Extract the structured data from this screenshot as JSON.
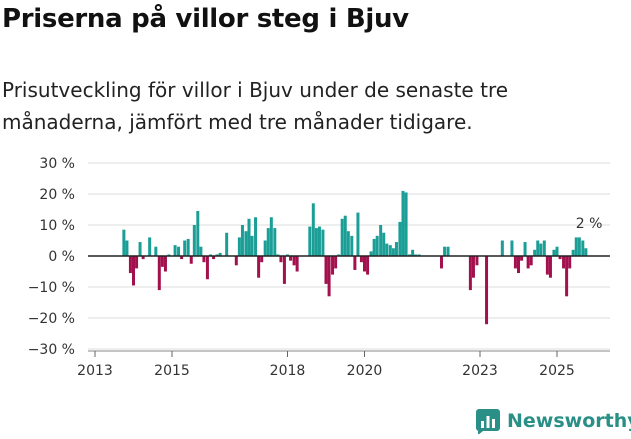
{
  "chart_data": {
    "type": "bar",
    "title": "Priserna på villor steg i Bjuv",
    "subtitle": "Prisutveckling för villor i Bjuv under de senaste tre månaderna, jämfört med tre månader tidigare.",
    "ylabel": "",
    "xlabel": "",
    "ylim": [
      -30,
      30
    ],
    "xlim": [
      2012.9,
      2026.6
    ],
    "y_ticks": [
      {
        "value": 30,
        "label": "30 %"
      },
      {
        "value": 20,
        "label": "20 %"
      },
      {
        "value": 10,
        "label": "10 %"
      },
      {
        "value": 0,
        "label": "0 %"
      },
      {
        "value": -10,
        "label": "−10 %"
      },
      {
        "value": -20,
        "label": "−20 %"
      },
      {
        "value": -30,
        "label": "−30 %"
      }
    ],
    "x_ticks": [
      {
        "value": 2013,
        "label": "2013"
      },
      {
        "value": 2015,
        "label": "2015"
      },
      {
        "value": 2018,
        "label": "2018"
      },
      {
        "value": 2020,
        "label": "2020"
      },
      {
        "value": 2023,
        "label": "2023"
      },
      {
        "value": 2025,
        "label": "2025"
      }
    ],
    "annotation": {
      "text": "2 %",
      "x": 2025.6,
      "y": 2
    },
    "colors": {
      "positive": "#1a9e96",
      "negative": "#a3104e",
      "zero_line": "#222222",
      "grid": "#dddddd"
    },
    "series": [
      {
        "name": "Prisutveckling",
        "x": [
          2013.75,
          2013.83,
          2013.92,
          2014.0,
          2014.08,
          2014.17,
          2014.25,
          2014.42,
          2014.58,
          2014.67,
          2014.75,
          2014.83,
          2014.92,
          2015.08,
          2015.17,
          2015.25,
          2015.33,
          2015.42,
          2015.5,
          2015.58,
          2015.67,
          2015.75,
          2015.83,
          2015.92,
          2016.0,
          2016.08,
          2016.17,
          2016.25,
          2016.42,
          2016.67,
          2016.75,
          2016.83,
          2016.92,
          2017.0,
          2017.08,
          2017.17,
          2017.25,
          2017.33,
          2017.42,
          2017.5,
          2017.58,
          2017.67,
          2017.75,
          2017.83,
          2017.92,
          2018.0,
          2018.08,
          2018.17,
          2018.25,
          2018.58,
          2018.67,
          2018.75,
          2018.83,
          2018.92,
          2019.0,
          2019.08,
          2019.17,
          2019.25,
          2019.33,
          2019.42,
          2019.5,
          2019.58,
          2019.67,
          2019.75,
          2019.83,
          2019.92,
          2020.0,
          2020.08,
          2020.17,
          2020.25,
          2020.33,
          2020.42,
          2020.5,
          2020.58,
          2020.67,
          2020.75,
          2020.83,
          2020.92,
          2021.0,
          2021.08,
          2021.17,
          2021.25,
          2021.33,
          2021.42,
          2022.0,
          2022.08,
          2022.17,
          2022.75,
          2022.83,
          2022.92,
          2023.17,
          2023.58,
          2023.83,
          2023.92,
          2024.0,
          2024.08,
          2024.17,
          2024.25,
          2024.33,
          2024.42,
          2024.5,
          2024.58,
          2024.67,
          2024.75,
          2024.83,
          2024.92,
          2025.0,
          2025.08,
          2025.17,
          2025.25,
          2025.33,
          2025.42,
          2025.5,
          2025.58,
          2025.67,
          2025.75
        ],
        "values": [
          8.5,
          5,
          -5.5,
          -9.5,
          -4,
          4.5,
          -1,
          6,
          3,
          -11,
          -3.5,
          -5,
          0.5,
          3.5,
          3,
          -1,
          5,
          5.5,
          -2.5,
          10,
          14.5,
          3,
          -2,
          -7.5,
          0.5,
          -1,
          0.5,
          1,
          7.5,
          -3,
          6,
          10,
          8,
          12,
          6.5,
          12.5,
          -7,
          -2,
          5,
          9,
          12.5,
          9,
          0.5,
          -2,
          -9,
          0.5,
          -1.5,
          -3,
          -5,
          9.5,
          17,
          9,
          9.5,
          8.5,
          -9,
          -13,
          -6,
          -4,
          0.5,
          12,
          13,
          8,
          6.5,
          -4.5,
          14,
          -2,
          -5,
          -6,
          1.5,
          5.5,
          6.5,
          10,
          7.5,
          4,
          3.5,
          2.5,
          4.5,
          11,
          21,
          20.5,
          0.5,
          2,
          0.5,
          0.5,
          -4,
          3,
          3,
          -11,
          -7,
          -3,
          -22,
          5,
          5,
          -4,
          -5.5,
          -1.5,
          4.5,
          -4,
          -3,
          2,
          5,
          4,
          5,
          -6,
          -7,
          2,
          3,
          -1,
          -4,
          -13,
          -4,
          2,
          6,
          6,
          5,
          2.5
        ]
      }
    ]
  },
  "brand": {
    "name": "Newsworthy",
    "color": "#2a8f86"
  }
}
